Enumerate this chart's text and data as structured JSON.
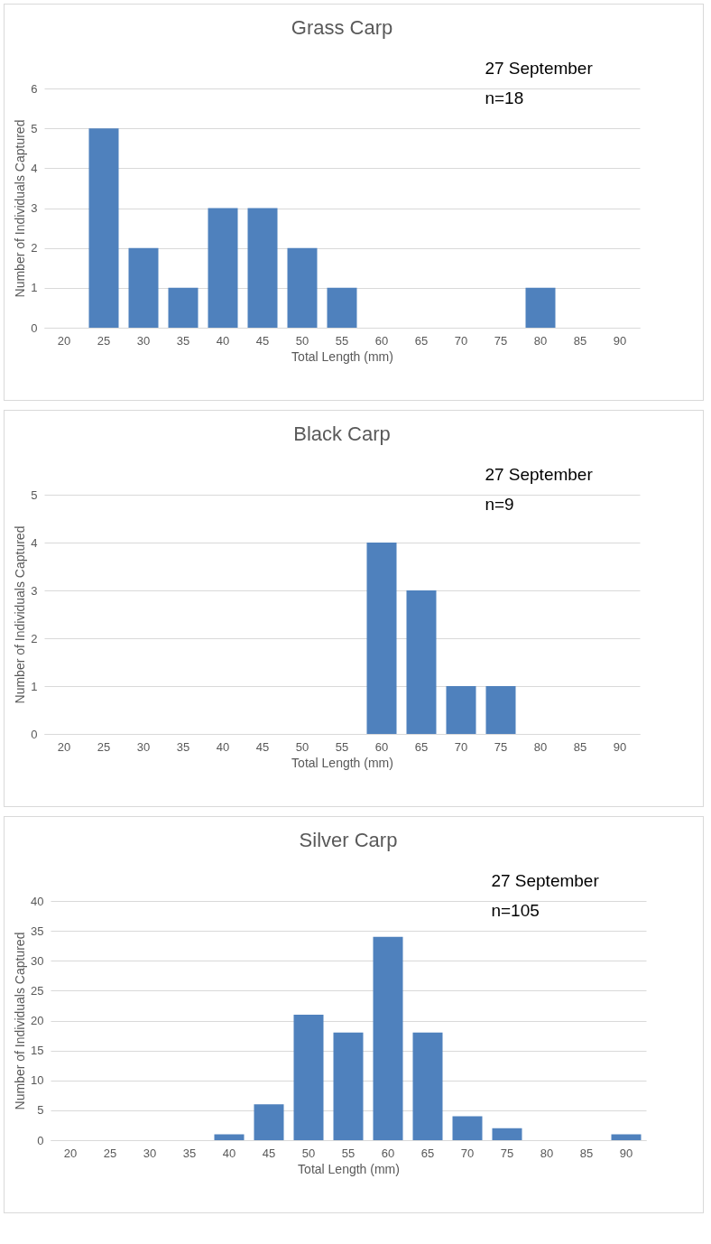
{
  "chart_data": [
    {
      "type": "bar",
      "title": "Grass Carp",
      "xlabel": "Total Length  (mm)",
      "ylabel": "Number  of Individuals Captured",
      "annotations": [
        "27 September",
        "n=18"
      ],
      "categories": [
        "20",
        "25",
        "30",
        "35",
        "40",
        "45",
        "50",
        "55",
        "60",
        "65",
        "70",
        "75",
        "80",
        "85",
        "90"
      ],
      "values": [
        0,
        5,
        2,
        1,
        3,
        3,
        2,
        1,
        0,
        0,
        0,
        0,
        1,
        0,
        0
      ],
      "color": "#4f81bd",
      "ylim": [
        0,
        6
      ],
      "yticks": [
        0,
        1,
        2,
        3,
        4,
        5,
        6
      ],
      "grid": "y"
    },
    {
      "type": "bar",
      "title": "Black Carp",
      "xlabel": "Total Length  (mm)",
      "ylabel": "Number  of Individuals Captured",
      "annotations": [
        "27 September",
        "n=9"
      ],
      "categories": [
        "20",
        "25",
        "30",
        "35",
        "40",
        "45",
        "50",
        "55",
        "60",
        "65",
        "70",
        "75",
        "80",
        "85",
        "90"
      ],
      "values": [
        0,
        0,
        0,
        0,
        0,
        0,
        0,
        0,
        4,
        3,
        1,
        1,
        0,
        0,
        0
      ],
      "color": "#4f81bd",
      "ylim": [
        0,
        5
      ],
      "yticks": [
        0,
        1,
        2,
        3,
        4,
        5
      ],
      "grid": "y"
    },
    {
      "type": "bar",
      "title": "Silver Carp",
      "xlabel": "Total Length  (mm)",
      "ylabel": "Number  of Individuals Captured",
      "annotations": [
        "27 September",
        "n=105"
      ],
      "categories": [
        "20",
        "25",
        "30",
        "35",
        "40",
        "45",
        "50",
        "55",
        "60",
        "65",
        "70",
        "75",
        "80",
        "85",
        "90"
      ],
      "values": [
        0,
        0,
        0,
        0,
        1,
        6,
        21,
        18,
        34,
        18,
        4,
        2,
        0,
        0,
        1
      ],
      "color": "#4f81bd",
      "ylim": [
        0,
        40
      ],
      "yticks": [
        0,
        5,
        10,
        15,
        20,
        25,
        30,
        35,
        40
      ],
      "grid": "y"
    }
  ]
}
